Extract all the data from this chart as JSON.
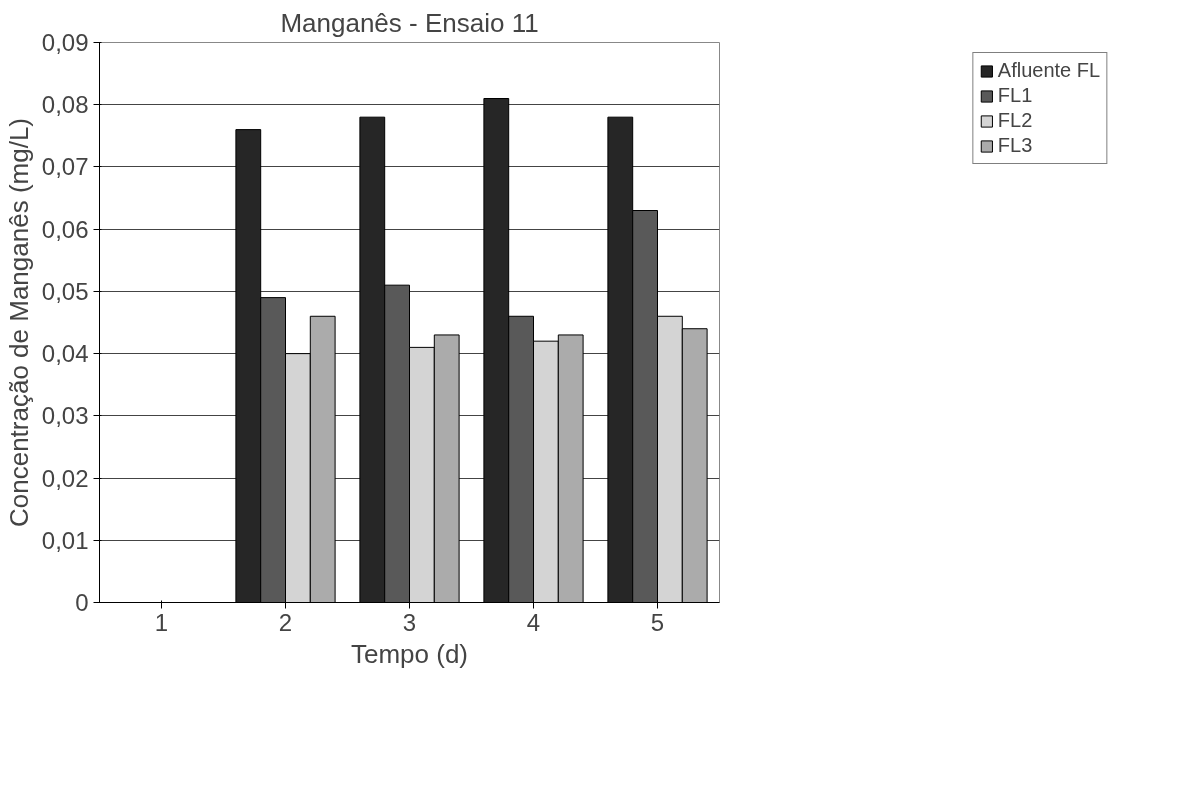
{
  "chart_data": {
    "type": "bar",
    "title": "Manganês - Ensaio 11",
    "xlabel": "Tempo (d)",
    "ylabel": "Concentração de Manganês (mg/L)",
    "categories": [
      "1",
      "2",
      "3",
      "4",
      "5"
    ],
    "series": [
      {
        "name": "Afluente FL",
        "color": "#262626",
        "values": [
          null,
          0.076,
          0.078,
          0.081,
          0.078
        ]
      },
      {
        "name": "FL1",
        "color": "#595959",
        "values": [
          null,
          0.049,
          0.051,
          0.046,
          0.063
        ]
      },
      {
        "name": "FL2",
        "color": "#d4d4d4",
        "values": [
          null,
          0.04,
          0.041,
          0.042,
          0.046
        ]
      },
      {
        "name": "FL3",
        "color": "#ababab",
        "values": [
          null,
          0.046,
          0.043,
          0.043,
          0.044
        ]
      }
    ],
    "ylim": [
      0,
      0.09
    ],
    "yticks": [
      0,
      {
        "value": 0.01,
        "label": "0,01"
      },
      {
        "value": 0.02,
        "label": "0,02"
      },
      {
        "value": 0.03,
        "label": "0,03"
      },
      {
        "value": 0.04,
        "label": "0,04"
      },
      {
        "value": 0.05,
        "label": "0,05"
      },
      {
        "value": 0.06,
        "label": "0,06"
      },
      {
        "value": 0.07,
        "label": "0,07"
      },
      {
        "value": 0.08,
        "label": "0,08"
      },
      {
        "value": 0.09,
        "label": "0,09"
      }
    ],
    "grid": "y",
    "legend": "top right"
  }
}
